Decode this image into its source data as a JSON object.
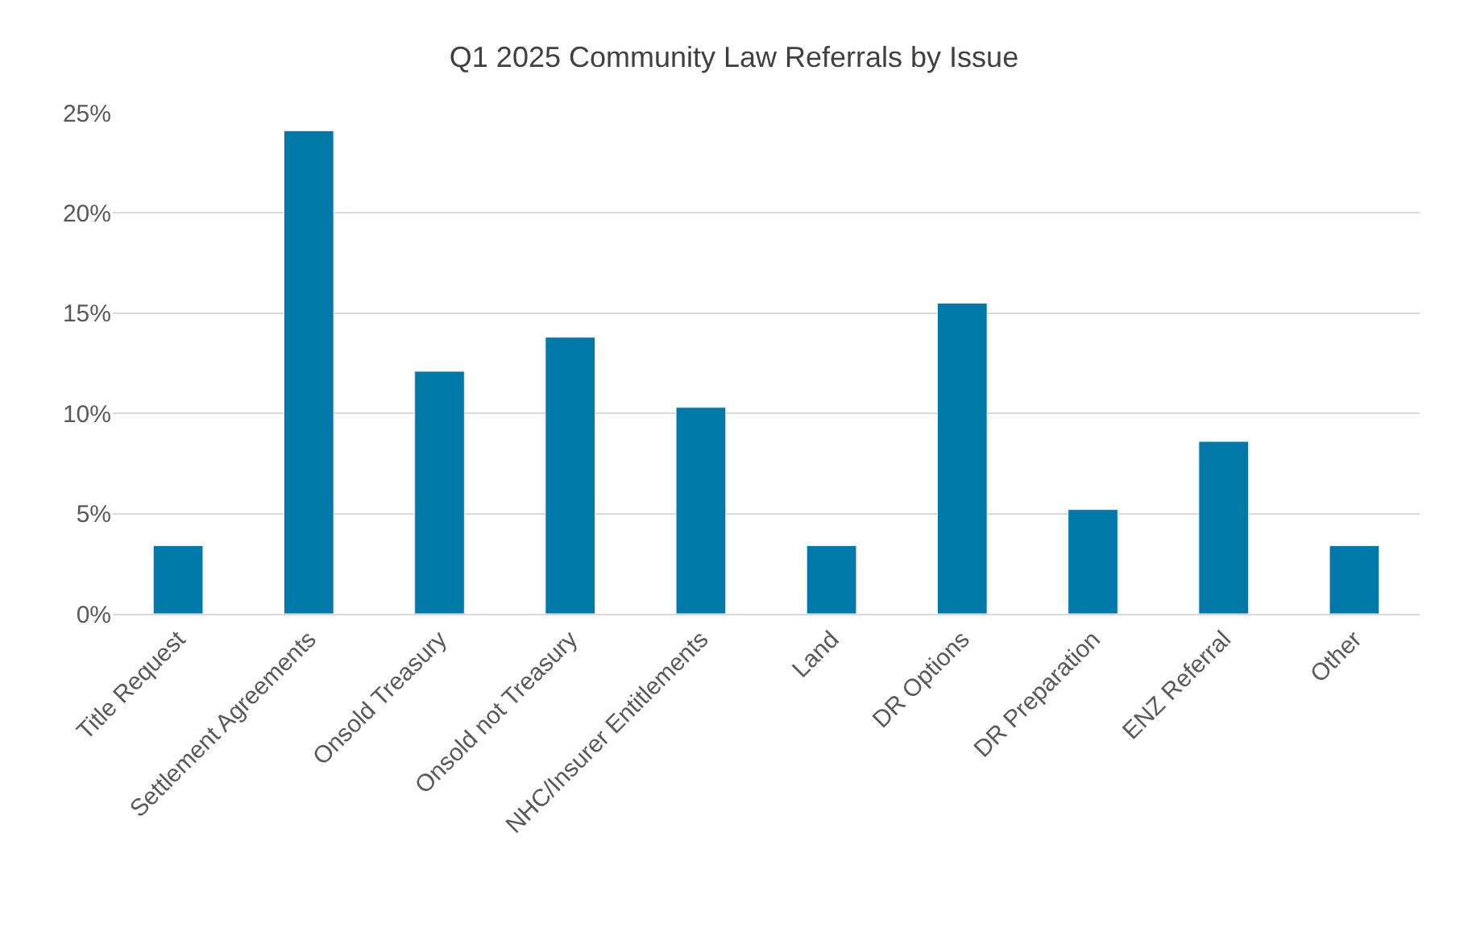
{
  "chart_data": {
    "type": "bar",
    "title": "Q1 2025 Community Law Referrals by Issue",
    "categories": [
      "Title Request",
      "Settlement Agreements",
      "Onsold Treasury",
      "Onsold not Treasury",
      "NHC/Insurer Entitlements",
      "Land",
      "DR Options",
      "DR Preparation",
      "ENZ Referral",
      "Other"
    ],
    "values": [
      3.4,
      24.1,
      12.1,
      13.8,
      10.3,
      3.4,
      15.5,
      5.2,
      8.6,
      3.4
    ],
    "color": "#0078a8",
    "ylim": [
      0,
      25
    ],
    "yticks": [
      {
        "value": 0,
        "label": "0%"
      },
      {
        "value": 5,
        "label": "5%"
      },
      {
        "value": 10,
        "label": "10%"
      },
      {
        "value": 15,
        "label": "15%"
      },
      {
        "value": 20,
        "label": "20%"
      },
      {
        "value": 25,
        "label": "25%"
      }
    ],
    "grid": "y",
    "legend": false
  }
}
